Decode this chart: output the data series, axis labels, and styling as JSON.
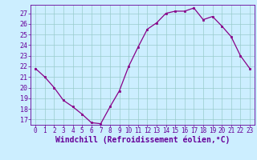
{
  "x": [
    0,
    1,
    2,
    3,
    4,
    5,
    6,
    7,
    8,
    9,
    10,
    11,
    12,
    13,
    14,
    15,
    16,
    17,
    18,
    19,
    20,
    21,
    22,
    23
  ],
  "y": [
    21.8,
    21.0,
    20.0,
    18.8,
    18.2,
    17.5,
    16.7,
    16.6,
    18.2,
    19.7,
    22.0,
    23.8,
    25.5,
    26.1,
    27.0,
    27.2,
    27.2,
    27.5,
    26.4,
    26.7,
    25.8,
    24.8,
    23.0,
    21.8
  ],
  "line_color": "#880088",
  "marker": "s",
  "marker_size": 2,
  "bg_color": "#cceeff",
  "grid_color": "#99cccc",
  "xlabel": "Windchill (Refroidissement éolien,°C)",
  "xlabel_color": "#660099",
  "tick_color": "#660099",
  "ylim": [
    16.5,
    27.8
  ],
  "yticks": [
    17,
    18,
    19,
    20,
    21,
    22,
    23,
    24,
    25,
    26,
    27
  ],
  "xlim": [
    -0.5,
    23.5
  ],
  "xticks": [
    0,
    1,
    2,
    3,
    4,
    5,
    6,
    7,
    8,
    9,
    10,
    11,
    12,
    13,
    14,
    15,
    16,
    17,
    18,
    19,
    20,
    21,
    22,
    23
  ],
  "tick_fontsize": 5.5,
  "xlabel_fontsize": 7.0,
  "ytick_fontsize": 6.0
}
